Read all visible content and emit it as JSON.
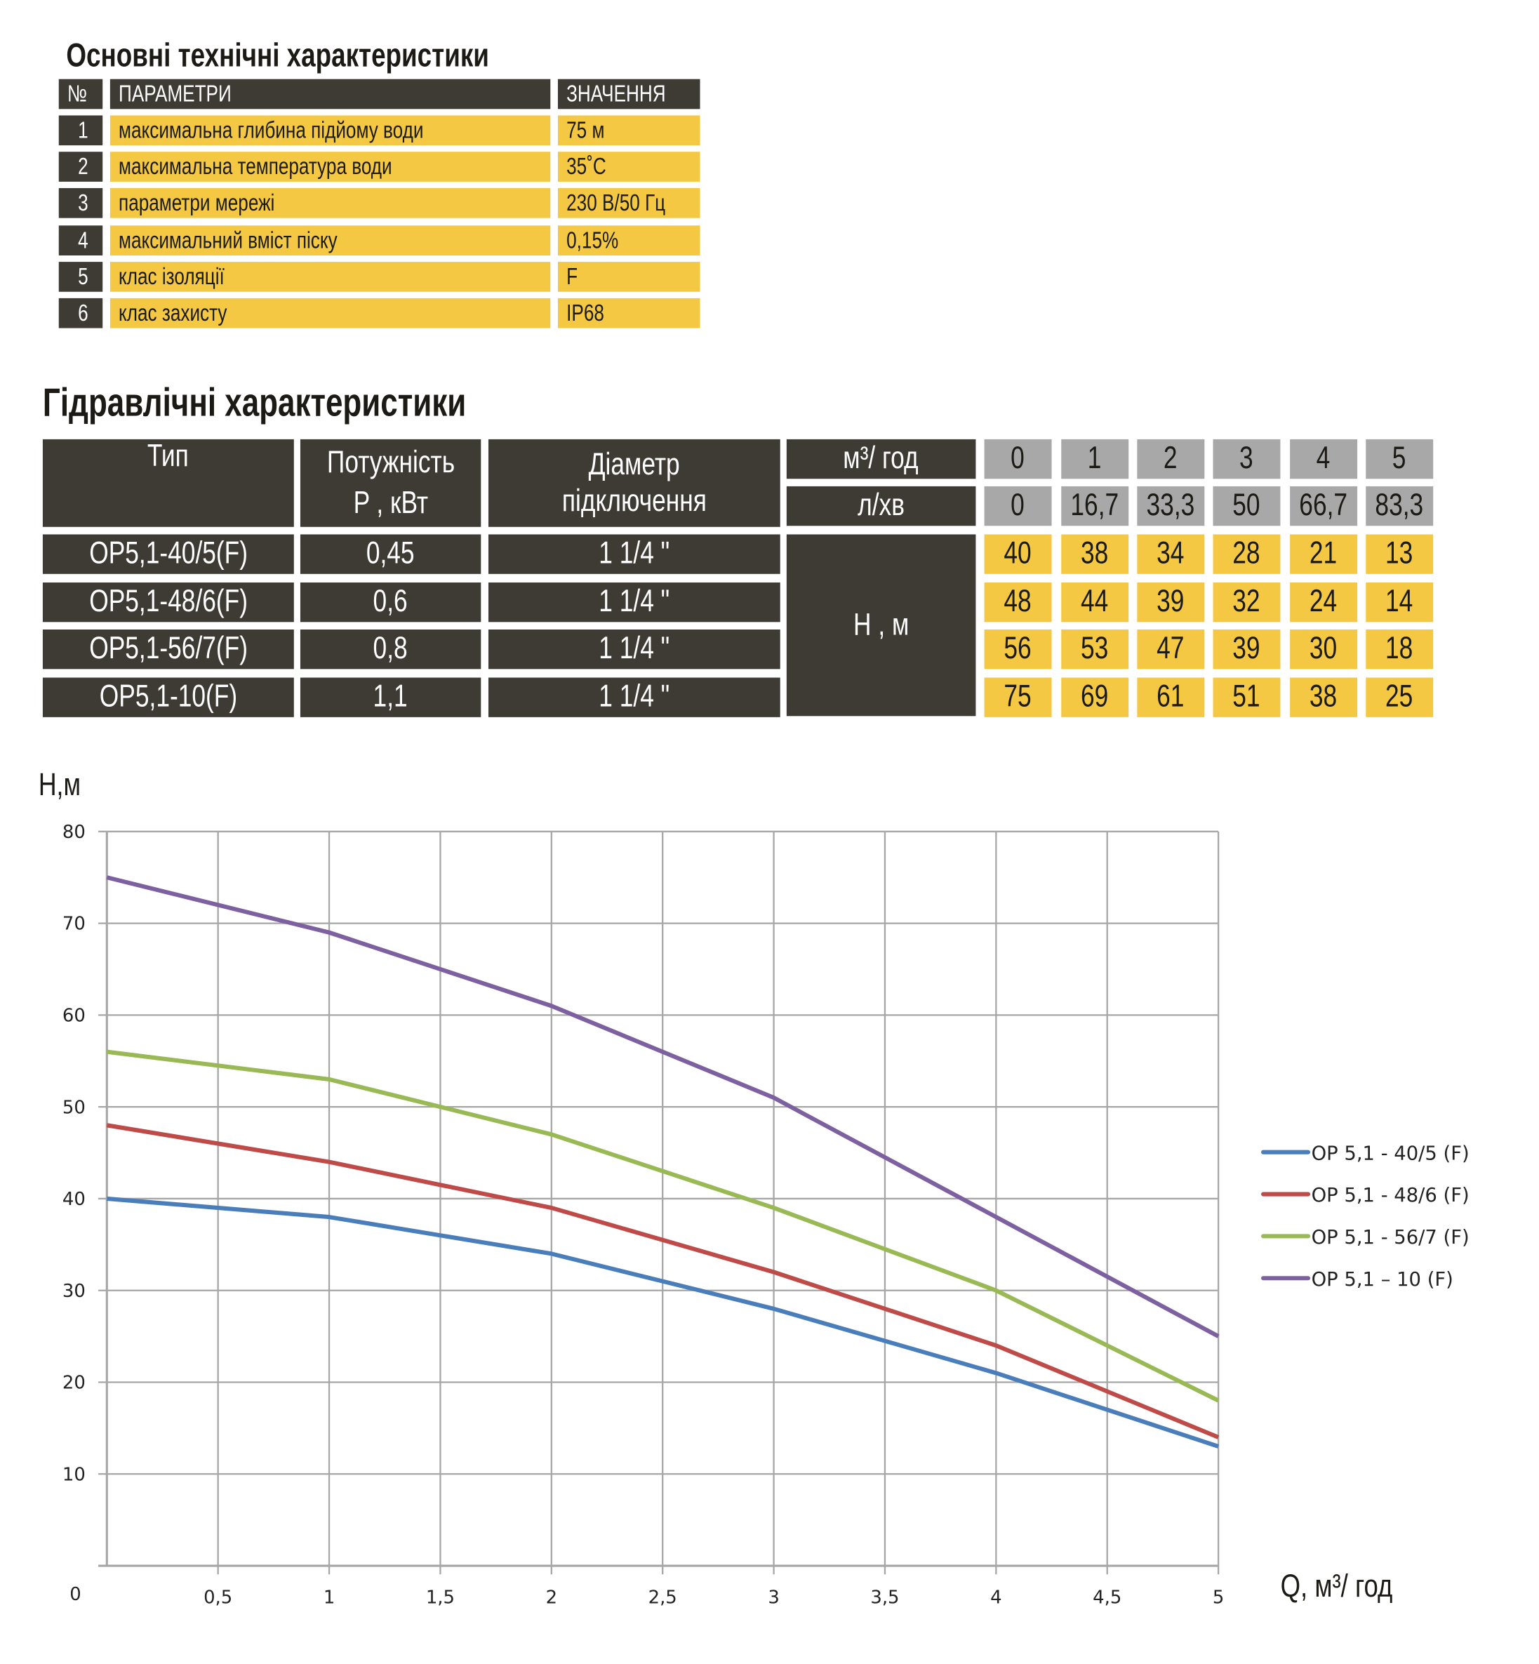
{
  "basic": {
    "title": "Основні технічні характеристики",
    "headers": {
      "num": "№",
      "param": "ПАРАМЕТРИ",
      "value": "ЗНАЧЕННЯ"
    },
    "rows": [
      {
        "num": "1",
        "param": "максимальна глибина підйому води",
        "value": "75 м"
      },
      {
        "num": "2",
        "param": "максимальна температура води",
        "value": "35˚C"
      },
      {
        "num": "3",
        "param": "параметри мережі",
        "value": "230 В/50 Гц"
      },
      {
        "num": "4",
        "param": "максимальний вміст піску",
        "value": "0,15%"
      },
      {
        "num": "5",
        "param": "клас ізоляції",
        "value": "F"
      },
      {
        "num": "6",
        "param": "клас захисту",
        "value": "IP68"
      }
    ]
  },
  "hydraulic": {
    "title": "Гідравлічні характеристики",
    "headers": {
      "type": "Тип",
      "power_1": "Потужність",
      "power_2": "P , кВт",
      "diam_1": "Діаметр",
      "diam_2": "підключення",
      "unit_m3": "м³/ год",
      "unit_l": "л/хв",
      "unit_h": "H , м"
    },
    "flow_m3": [
      "0",
      "1",
      "2",
      "3",
      "4",
      "5"
    ],
    "flow_l": [
      "0",
      "16,7",
      "33,3",
      "50",
      "66,7",
      "83,3"
    ],
    "rows": [
      {
        "type": "OP5,1-40/5(F)",
        "power": "0,45",
        "diam": "1 1/4 \"",
        "h": [
          "40",
          "38",
          "34",
          "28",
          "21",
          "13"
        ]
      },
      {
        "type": "OP5,1-48/6(F)",
        "power": "0,6",
        "diam": "1 1/4 \"",
        "h": [
          "48",
          "44",
          "39",
          "32",
          "24",
          "14"
        ]
      },
      {
        "type": "OP5,1-56/7(F)",
        "power": "0,8",
        "diam": "1 1/4 \"",
        "h": [
          "56",
          "53",
          "47",
          "39",
          "30",
          "18"
        ]
      },
      {
        "type": "OP5,1-10(F)",
        "power": "1,1",
        "diam": "1 1/4 \"",
        "h": [
          "75",
          "69",
          "61",
          "51",
          "38",
          "25"
        ]
      }
    ]
  },
  "colors": {
    "dark": "#3e3a34",
    "yellow": "#f4c842",
    "grey": "#a8a8a8"
  },
  "chart_data": {
    "type": "line",
    "ylabel": "H,м",
    "xlabel": "Q,  м³/ год",
    "x": [
      0,
      1,
      2,
      3,
      4,
      5
    ],
    "xlim": [
      0,
      5
    ],
    "ylim": [
      0,
      80
    ],
    "x_ticks": [
      "0",
      "0,5",
      "1",
      "1,5",
      "2",
      "2,5",
      "3",
      "3,5",
      "4",
      "4,5",
      "5"
    ],
    "y_ticks": [
      "0",
      "10",
      "20",
      "30",
      "40",
      "50",
      "60",
      "70",
      "80"
    ],
    "grid": true,
    "legend": "right",
    "series": [
      {
        "name": "OP 5,1 - 40/5 (F)",
        "color": "#4a7ebb",
        "values": [
          40,
          38,
          34,
          28,
          21,
          13
        ]
      },
      {
        "name": "OP 5,1 - 48/6 (F)",
        "color": "#be4b48",
        "values": [
          48,
          44,
          39,
          32,
          24,
          14
        ]
      },
      {
        "name": "OP 5,1 - 56/7 (F)",
        "color": "#98b954",
        "values": [
          56,
          53,
          47,
          39,
          30,
          18
        ]
      },
      {
        "name": "OP 5,1 – 10 (F)",
        "color": "#7d60a0",
        "values": [
          75,
          69,
          61,
          51,
          38,
          25
        ]
      }
    ]
  }
}
